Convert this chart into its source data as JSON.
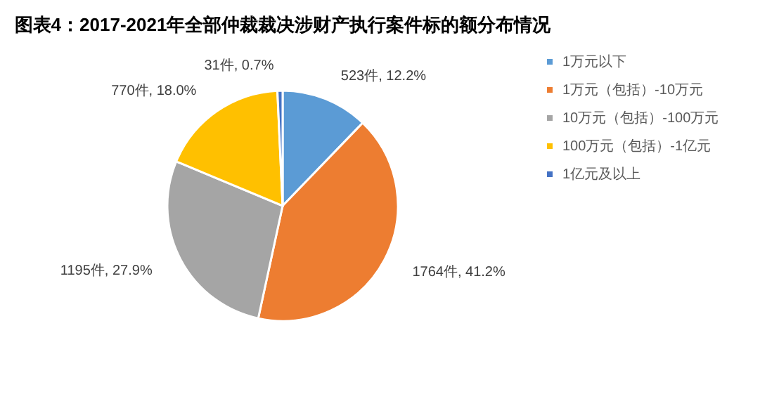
{
  "chart_data": {
    "type": "pie",
    "title": "图表4：2017-2021年全部仲裁裁决涉财产执行案件标的额分布情况",
    "categories": [
      "1万元以下",
      "1万元（包括）-10万元",
      "10万元（包括）-100万元",
      "100万元（包括）-1亿元",
      "1亿元及以上"
    ],
    "values": [
      523,
      1764,
      1195,
      770,
      31
    ],
    "value_labels": [
      "523件, 12.2%",
      "1764件, 41.2%",
      "1195件, 27.9%",
      "770件, 18.0%",
      "31件, 0.7%"
    ],
    "colors": [
      "#5b9bd5",
      "#ed7d31",
      "#a5a5a5",
      "#ffc000",
      "#4472c4"
    ],
    "legend": "right"
  }
}
